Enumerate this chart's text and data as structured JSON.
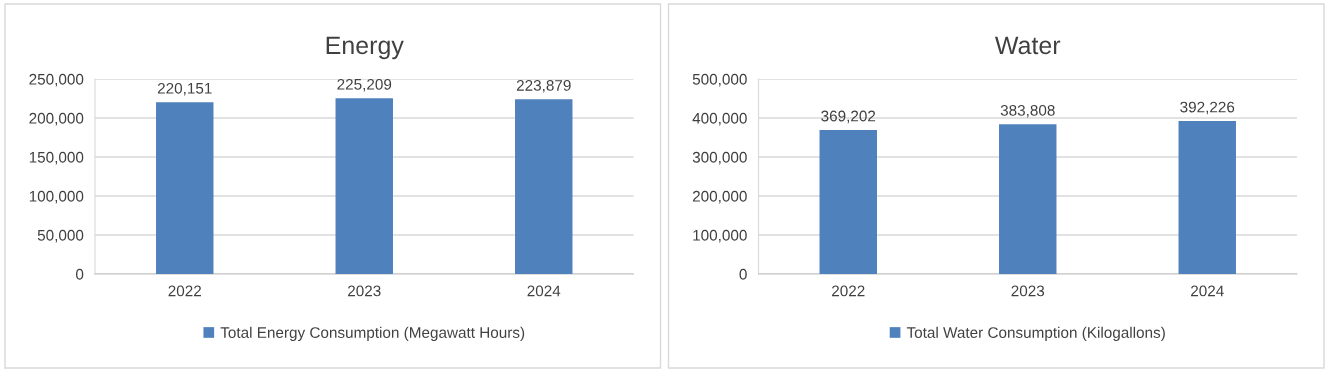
{
  "chart_data": [
    {
      "type": "bar",
      "title": "Energy",
      "categories": [
        "2022",
        "2023",
        "2024"
      ],
      "series": [
        {
          "name": "Total Energy Consumption (Megawatt Hours)",
          "color": "#4f81bd",
          "values": [
            220151,
            225209,
            223879
          ],
          "value_labels": [
            "220,151",
            "225,209",
            "223,879"
          ]
        }
      ],
      "ylim": [
        0,
        250000
      ],
      "yticks": [
        {
          "value": 0,
          "label": "0"
        },
        {
          "value": 50000,
          "label": "50,000"
        },
        {
          "value": 100000,
          "label": "100,000"
        },
        {
          "value": 150000,
          "label": "150,000"
        },
        {
          "value": 200000,
          "label": "200,000"
        },
        {
          "value": 250000,
          "label": "250,000"
        }
      ],
      "grid": "y",
      "legend": "bottom"
    },
    {
      "type": "bar",
      "title": "Water",
      "categories": [
        "2022",
        "2023",
        "2024"
      ],
      "series": [
        {
          "name": "Total Water Consumption (Kilogallons)",
          "color": "#4f81bd",
          "values": [
            369202,
            383808,
            392226
          ],
          "value_labels": [
            "369,202",
            "383,808",
            "392,226"
          ]
        }
      ],
      "ylim": [
        0,
        500000
      ],
      "yticks": [
        {
          "value": 0,
          "label": "0"
        },
        {
          "value": 100000,
          "label": "100,000"
        },
        {
          "value": 200000,
          "label": "200,000"
        },
        {
          "value": 300000,
          "label": "300,000"
        },
        {
          "value": 400000,
          "label": "400,000"
        },
        {
          "value": 500000,
          "label": "500,000"
        }
      ],
      "grid": "y",
      "legend": "bottom"
    }
  ]
}
